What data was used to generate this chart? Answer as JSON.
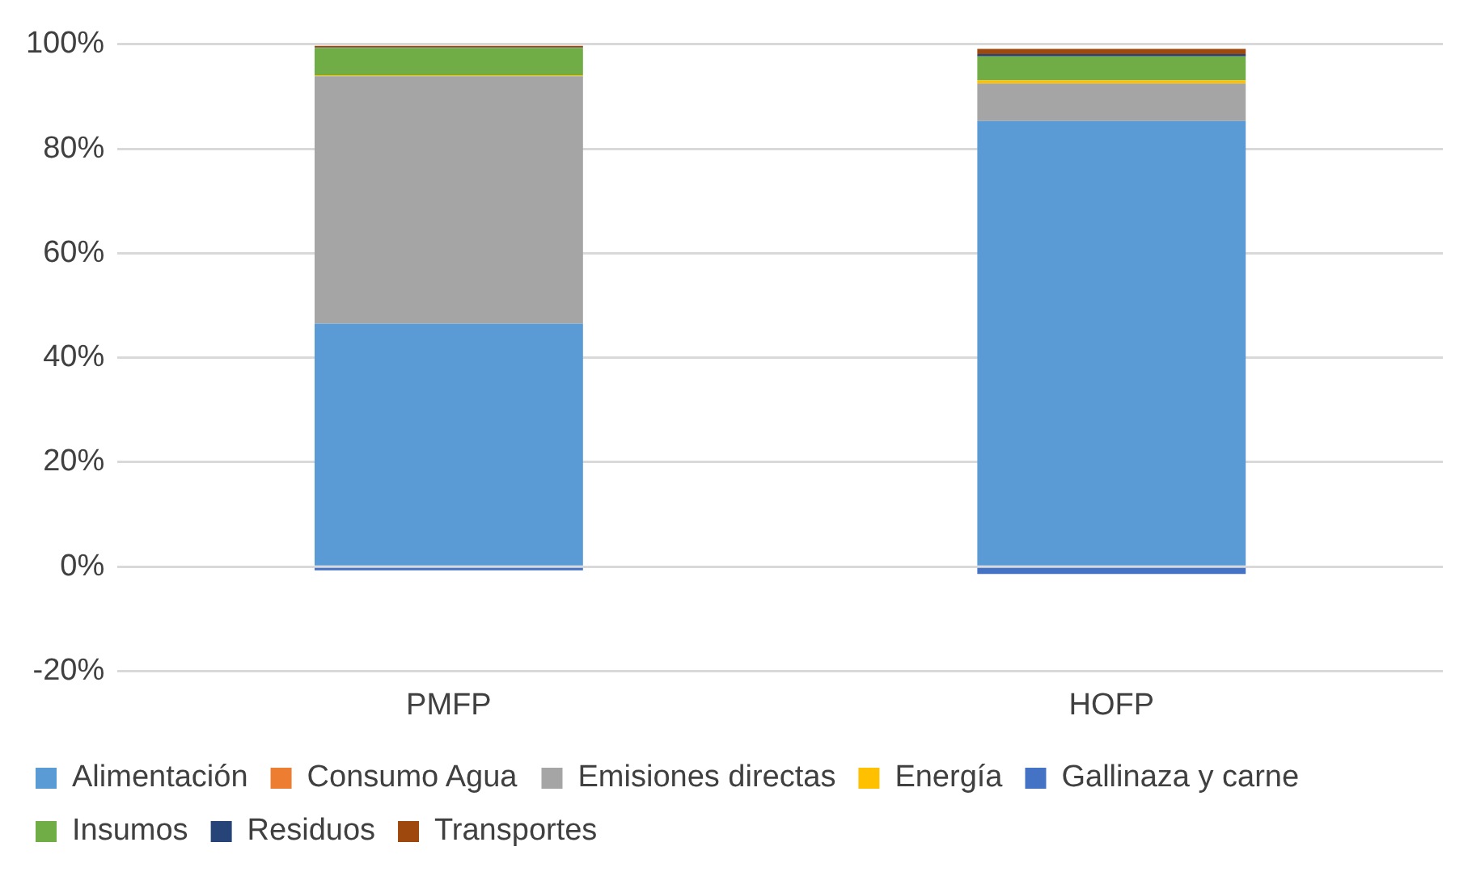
{
  "chart_data": {
    "type": "bar",
    "stacked": true,
    "categories": [
      "PMFP",
      "HOFP"
    ],
    "series": [
      {
        "name": "Alimentación",
        "color": "#5b9bd5",
        "values": [
          46.5,
          85.3
        ]
      },
      {
        "name": "Consumo Agua",
        "color": "#ed7d31",
        "values": [
          null,
          null
        ]
      },
      {
        "name": "Emisiones directas",
        "color": "#a5a5a5",
        "values": [
          47.4,
          7.2
        ]
      },
      {
        "name": "Energía",
        "color": "#ffc000",
        "values": [
          0.2,
          0.6
        ]
      },
      {
        "name": "Gallinaza y carne",
        "color": "#4472c4",
        "values": [
          -0.7,
          -1.4
        ]
      },
      {
        "name": "Insumos",
        "color": "#70ad47",
        "values": [
          5.2,
          4.6
        ]
      },
      {
        "name": "Residuos",
        "color": "#264478",
        "values": [
          0.1,
          0.4
        ]
      },
      {
        "name": "Transportes",
        "color": "#9e480e",
        "values": [
          0.3,
          1.0
        ]
      }
    ],
    "ylim": [
      -20,
      100
    ],
    "yticks": [
      {
        "value": -20,
        "label": "-20%"
      },
      {
        "value": 0,
        "label": "0%"
      },
      {
        "value": 20,
        "label": "20%"
      },
      {
        "value": 40,
        "label": "40%"
      },
      {
        "value": 60,
        "label": "60%"
      },
      {
        "value": 80,
        "label": "80%"
      },
      {
        "value": 100,
        "label": "100%"
      }
    ],
    "grid": "y",
    "legend": "bottom"
  }
}
